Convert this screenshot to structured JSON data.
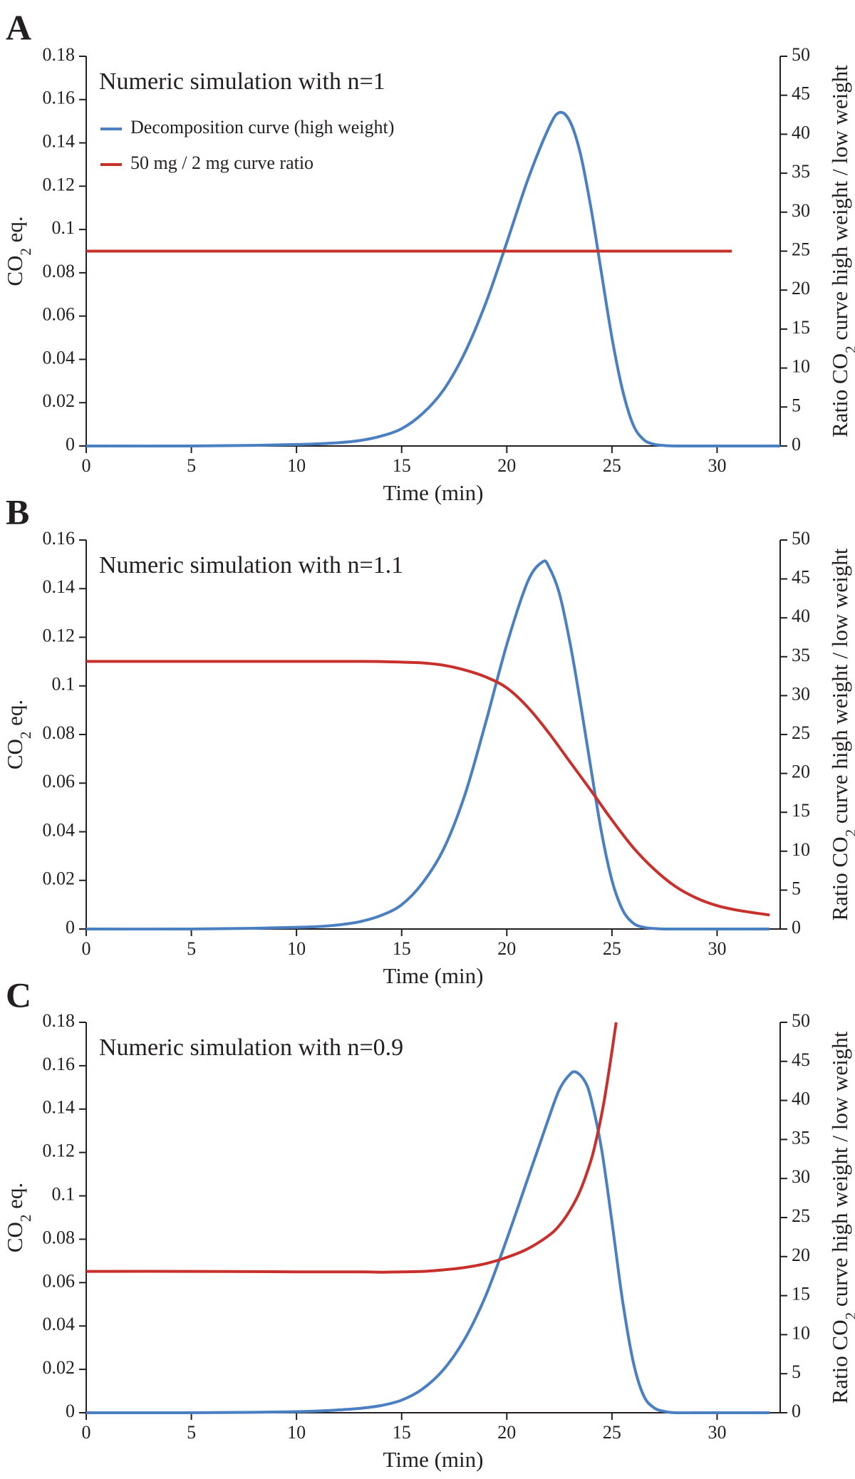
{
  "colors": {
    "decomposition": "#4a7fc1",
    "ratio": "#c8302c",
    "axis": "#231f20"
  },
  "chart_data": [
    {
      "panel": "A",
      "type": "line",
      "annotation": "Numeric simulation with n=1",
      "xlabel": "Time (min)",
      "ylabel": "CO2 eq.",
      "y2label": "Ratio CO2 curve high weight / low weight",
      "xlim": [
        0,
        33
      ],
      "ylim": [
        0,
        0.18
      ],
      "y2lim": [
        0,
        50
      ],
      "xticks": [
        0,
        5,
        10,
        15,
        20,
        25,
        30
      ],
      "yticks": [
        0,
        0.02,
        0.04,
        0.06,
        0.08,
        0.1,
        0.12,
        0.14,
        0.16,
        0.18
      ],
      "y2ticks": [
        0,
        5,
        10,
        15,
        20,
        25,
        30,
        35,
        40,
        45,
        50
      ],
      "legend": {
        "placement": "top-left",
        "entries": [
          "Decomposition curve (high weight)",
          "50 mg / 2 mg curve ratio"
        ]
      },
      "series": [
        {
          "name": "Decomposition curve (high weight)",
          "axis": "left",
          "color": "#4a7fc1",
          "x": [
            0,
            5,
            8,
            10,
            11,
            12,
            13,
            14,
            15,
            16,
            17,
            18,
            19,
            20,
            21,
            22,
            22.5,
            23,
            23.5,
            24,
            24.5,
            25,
            25.5,
            26,
            26.5,
            27,
            27.5,
            28,
            29,
            30,
            31,
            33
          ],
          "y": [
            0,
            0,
            0.0003,
            0.0007,
            0.001,
            0.0015,
            0.0025,
            0.0045,
            0.008,
            0.015,
            0.026,
            0.043,
            0.066,
            0.094,
            0.123,
            0.147,
            0.154,
            0.15,
            0.135,
            0.11,
            0.08,
            0.05,
            0.026,
            0.01,
            0.003,
            0.0008,
            0.0002,
            0,
            0,
            0,
            0,
            0
          ]
        },
        {
          "name": "50 mg / 2 mg curve ratio",
          "axis": "right",
          "color": "#c8302c",
          "x": [
            0,
            30.7
          ],
          "y": [
            25,
            25
          ]
        }
      ]
    },
    {
      "panel": "B",
      "type": "line",
      "annotation": "Numeric simulation with n=1.1",
      "xlabel": "Time (min)",
      "ylabel": "CO2 eq.",
      "y2label": "Ratio CO2 curve high weight / low weight",
      "xlim": [
        0,
        33
      ],
      "ylim": [
        0,
        0.16
      ],
      "y2lim": [
        0,
        50
      ],
      "xticks": [
        0,
        5,
        10,
        15,
        20,
        25,
        30
      ],
      "yticks": [
        0,
        0.02,
        0.04,
        0.06,
        0.08,
        0.1,
        0.12,
        0.14,
        0.16
      ],
      "y2ticks": [
        0,
        5,
        10,
        15,
        20,
        25,
        30,
        35,
        40,
        45,
        50
      ],
      "series": [
        {
          "name": "Decomposition curve (high weight)",
          "axis": "left",
          "color": "#4a7fc1",
          "x": [
            0,
            5,
            8,
            10,
            11,
            12,
            13,
            14,
            15,
            16,
            17,
            18,
            19,
            20,
            21,
            21.7,
            22,
            22.5,
            23,
            23.5,
            24,
            24.5,
            25,
            25.5,
            26,
            26.5,
            27,
            27.5,
            28,
            29,
            30,
            31,
            32.5
          ],
          "y": [
            0,
            0,
            0.0003,
            0.0007,
            0.001,
            0.0017,
            0.003,
            0.0055,
            0.01,
            0.019,
            0.033,
            0.055,
            0.085,
            0.117,
            0.143,
            0.151,
            0.149,
            0.138,
            0.118,
            0.093,
            0.066,
            0.04,
            0.02,
            0.008,
            0.0025,
            0.0007,
            0.0002,
            0,
            0,
            0,
            0,
            0,
            0
          ],
          "note": "stroke ends at x=32.5"
        },
        {
          "name": "50 mg / 2 mg curve ratio",
          "axis": "right",
          "color": "#c8302c",
          "x": [
            0,
            5,
            10,
            13,
            14,
            15,
            16,
            17,
            18,
            19,
            20,
            21,
            22,
            23,
            24,
            25,
            26,
            27,
            28,
            29,
            30,
            31,
            32.5
          ],
          "y": [
            34.4,
            34.4,
            34.4,
            34.4,
            34.38,
            34.3,
            34.2,
            33.9,
            33.3,
            32.4,
            31.0,
            28.5,
            25.2,
            21.5,
            17.8,
            14.0,
            10.5,
            7.7,
            5.5,
            4.0,
            3.0,
            2.4,
            1.8
          ]
        }
      ]
    },
    {
      "panel": "C",
      "type": "line",
      "annotation": "Numeric simulation with n=0.9",
      "xlabel": "Time (min)",
      "ylabel": "CO2 eq.",
      "y2label": "Ratio CO2 curve high weight / low weight",
      "xlim": [
        0,
        33
      ],
      "ylim": [
        0,
        0.18
      ],
      "y2lim": [
        0,
        50
      ],
      "xticks": [
        0,
        5,
        10,
        15,
        20,
        25,
        30
      ],
      "yticks": [
        0,
        0.02,
        0.04,
        0.06,
        0.08,
        0.1,
        0.12,
        0.14,
        0.16,
        0.18
      ],
      "y2ticks": [
        0,
        5,
        10,
        15,
        20,
        25,
        30,
        35,
        40,
        45,
        50
      ],
      "series": [
        {
          "name": "Decomposition curve (high weight)",
          "axis": "left",
          "color": "#4a7fc1",
          "x": [
            0,
            5,
            8,
            10,
            11,
            12,
            13,
            14,
            15,
            16,
            17,
            18,
            19,
            20,
            21,
            22,
            22.5,
            23,
            23.3,
            23.7,
            24,
            24.5,
            25,
            25.5,
            26,
            26.5,
            27,
            27.5,
            28,
            29,
            30,
            31,
            32.5
          ],
          "y": [
            0,
            0,
            0.0002,
            0.0005,
            0.0008,
            0.0013,
            0.002,
            0.0033,
            0.0058,
            0.011,
            0.02,
            0.034,
            0.054,
            0.08,
            0.108,
            0.136,
            0.149,
            0.156,
            0.157,
            0.153,
            0.145,
            0.122,
            0.088,
            0.052,
            0.024,
            0.008,
            0.0023,
            0.0006,
            0,
            0,
            0,
            0,
            0
          ],
          "note": "stroke ends at x=32.5"
        },
        {
          "name": "50 mg / 2 mg curve ratio",
          "axis": "right",
          "color": "#c8302c",
          "x": [
            0,
            5,
            10,
            13,
            14,
            15,
            16,
            17,
            18,
            19,
            20,
            21,
            22,
            22.5,
            23,
            23.5,
            24,
            24.3,
            24.6,
            24.9,
            25.2
          ],
          "y": [
            18.1,
            18.1,
            18.05,
            18.05,
            18.0,
            18.05,
            18.1,
            18.3,
            18.6,
            19.1,
            19.9,
            21.0,
            22.7,
            24.0,
            25.9,
            28.5,
            32.3,
            35.5,
            39.5,
            44.5,
            50
          ]
        }
      ]
    }
  ]
}
